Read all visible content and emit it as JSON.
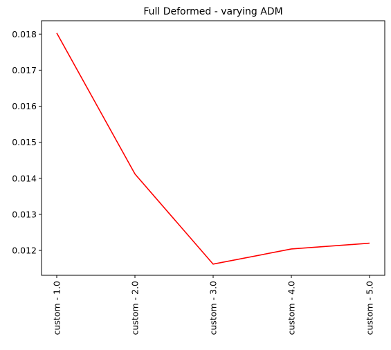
{
  "chart_data": {
    "type": "line",
    "title": "Full Deformed - varying ADM",
    "xlabel": "",
    "ylabel": "",
    "categories": [
      "custom - 1.0",
      "custom - 2.0",
      "custom - 3.0",
      "custom - 4.0",
      "custom - 5.0"
    ],
    "series": [
      {
        "values": [
          0.01803,
          0.01412,
          0.01162,
          0.01204,
          0.0122
        ],
        "color": "#ff0000"
      }
    ],
    "ylim": [
      0.01131,
      0.01837
    ],
    "yticks": [
      0.012,
      0.013,
      0.014,
      0.015,
      0.016,
      0.017,
      0.018
    ],
    "ytick_labels": [
      "0.012",
      "0.013",
      "0.014",
      "0.015",
      "0.016",
      "0.017",
      "0.018"
    ],
    "grid": false,
    "legend": false
  }
}
